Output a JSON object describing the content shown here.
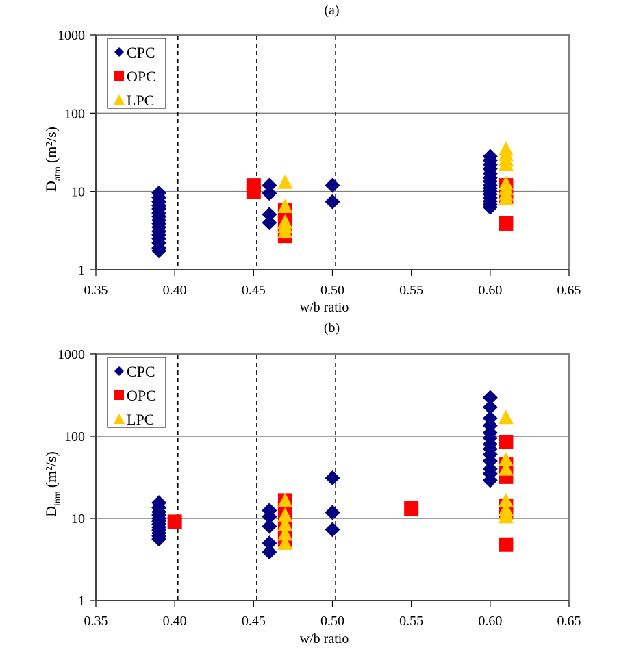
{
  "chart_data": [
    {
      "id": "a",
      "type": "scatter",
      "title": "(a)",
      "xlabel": "w/b ratio",
      "ylabel": "D_atm (m²/s)",
      "ylabel_main": "D",
      "ylabel_sub": "atm",
      "ylabel_unit": "(m²/s)",
      "xlim": [
        0.35,
        0.65
      ],
      "ylim": [
        1,
        1000
      ],
      "yscale": "log",
      "xticks": [
        "0.35",
        "0.40",
        "0.45",
        "0.50",
        "0.55",
        "0.60",
        "0.65"
      ],
      "yticks": [
        "1",
        "10",
        "100",
        "1000"
      ],
      "grid": "horizontal major",
      "vlines_dashed": [
        0.402,
        0.452,
        0.502
      ],
      "legend": {
        "position": "upper-left",
        "entries": [
          "CPC",
          "OPC",
          "LPC"
        ]
      },
      "series": [
        {
          "name": "CPC",
          "marker": "diamond",
          "color": "#000080",
          "points": [
            [
              0.39,
              9.6
            ],
            [
              0.39,
              8.4
            ],
            [
              0.39,
              7.4
            ],
            [
              0.39,
              6.6
            ],
            [
              0.39,
              6.0
            ],
            [
              0.39,
              5.3
            ],
            [
              0.39,
              4.8
            ],
            [
              0.39,
              4.3
            ],
            [
              0.39,
              3.9
            ],
            [
              0.39,
              3.5
            ],
            [
              0.39,
              3.1
            ],
            [
              0.39,
              2.8
            ],
            [
              0.39,
              2.5
            ],
            [
              0.39,
              2.2
            ],
            [
              0.39,
              1.9
            ],
            [
              0.39,
              1.75
            ],
            [
              0.46,
              12.0
            ],
            [
              0.46,
              9.5
            ],
            [
              0.46,
              5.1
            ],
            [
              0.46,
              4.0
            ],
            [
              0.5,
              12.0
            ],
            [
              0.5,
              7.4
            ],
            [
              0.6,
              28
            ],
            [
              0.6,
              25
            ],
            [
              0.6,
              22
            ],
            [
              0.6,
              19.5
            ],
            [
              0.6,
              17
            ],
            [
              0.6,
              15
            ],
            [
              0.6,
              13.5
            ],
            [
              0.6,
              12
            ],
            [
              0.6,
              11
            ],
            [
              0.6,
              10
            ],
            [
              0.6,
              9.2
            ],
            [
              0.6,
              8.3
            ],
            [
              0.6,
              7.5
            ],
            [
              0.6,
              6.8
            ],
            [
              0.6,
              6.3
            ]
          ]
        },
        {
          "name": "OPC",
          "marker": "square",
          "color": "#FF0000",
          "points": [
            [
              0.45,
              12.0
            ],
            [
              0.45,
              10.0
            ],
            [
              0.47,
              5.7
            ],
            [
              0.47,
              4.6
            ],
            [
              0.47,
              3.8
            ],
            [
              0.47,
              3.1
            ],
            [
              0.47,
              2.7
            ],
            [
              0.61,
              12.0
            ],
            [
              0.61,
              10.5
            ],
            [
              0.61,
              8.3
            ],
            [
              0.61,
              3.9
            ]
          ]
        },
        {
          "name": "LPC",
          "marker": "triangle",
          "color": "#FFCC00",
          "points": [
            [
              0.47,
              13.2
            ],
            [
              0.47,
              6.5
            ],
            [
              0.47,
              4.1
            ],
            [
              0.47,
              3.6
            ],
            [
              0.47,
              3.1
            ],
            [
              0.61,
              35
            ],
            [
              0.61,
              30
            ],
            [
              0.61,
              26
            ],
            [
              0.61,
              22.5
            ],
            [
              0.61,
              12.7
            ],
            [
              0.61,
              11
            ],
            [
              0.61,
              9.4
            ],
            [
              0.61,
              8.2
            ]
          ]
        }
      ]
    },
    {
      "id": "b",
      "type": "scatter",
      "title": "(b)",
      "xlabel": "w/b ratio",
      "ylabel": "D_inm (m²/s)",
      "ylabel_main": "D",
      "ylabel_sub": "inm",
      "ylabel_unit": "(m²/s)",
      "xlim": [
        0.35,
        0.65
      ],
      "ylim": [
        1,
        1000
      ],
      "yscale": "log",
      "xticks": [
        "0.35",
        "0.40",
        "0.45",
        "0.50",
        "0.55",
        "0.60",
        "0.65"
      ],
      "yticks": [
        "1",
        "10",
        "100",
        "1000"
      ],
      "grid": "horizontal major",
      "vlines_dashed": [
        0.402,
        0.452,
        0.502
      ],
      "legend": {
        "position": "upper-left",
        "entries": [
          "CPC",
          "OPC",
          "LPC"
        ]
      },
      "series": [
        {
          "name": "CPC",
          "marker": "diamond",
          "color": "#000080",
          "points": [
            [
              0.39,
              15.5
            ],
            [
              0.39,
              13.5
            ],
            [
              0.39,
              12
            ],
            [
              0.39,
              11
            ],
            [
              0.39,
              10
            ],
            [
              0.39,
              9.2
            ],
            [
              0.39,
              8.5
            ],
            [
              0.39,
              7.8
            ],
            [
              0.39,
              7.2
            ],
            [
              0.39,
              6.6
            ],
            [
              0.39,
              6.1
            ],
            [
              0.39,
              5.6
            ],
            [
              0.46,
              12.5
            ],
            [
              0.46,
              10.5
            ],
            [
              0.46,
              8.0
            ],
            [
              0.46,
              5.0
            ],
            [
              0.46,
              3.9
            ],
            [
              0.5,
              31
            ],
            [
              0.5,
              11.8
            ],
            [
              0.5,
              7.3
            ],
            [
              0.6,
              295
            ],
            [
              0.6,
              225
            ],
            [
              0.6,
              165
            ],
            [
              0.6,
              135
            ],
            [
              0.6,
              110
            ],
            [
              0.6,
              95
            ],
            [
              0.6,
              80
            ],
            [
              0.6,
              70
            ],
            [
              0.6,
              60
            ],
            [
              0.6,
              50
            ],
            [
              0.6,
              40
            ],
            [
              0.6,
              35
            ],
            [
              0.6,
              29
            ]
          ]
        },
        {
          "name": "OPC",
          "marker": "square",
          "color": "#FF0000",
          "points": [
            [
              0.4,
              9.1
            ],
            [
              0.47,
              16.5
            ],
            [
              0.47,
              12
            ],
            [
              0.47,
              9
            ],
            [
              0.47,
              7
            ],
            [
              0.47,
              5.5
            ],
            [
              0.55,
              13.2
            ],
            [
              0.61,
              85
            ],
            [
              0.61,
              45
            ],
            [
              0.61,
              32
            ],
            [
              0.61,
              14
            ],
            [
              0.61,
              12
            ],
            [
              0.61,
              4.8
            ]
          ]
        },
        {
          "name": "LPC",
          "marker": "triangle",
          "color": "#FFCC00",
          "points": [
            [
              0.47,
              16.5
            ],
            [
              0.47,
              11
            ],
            [
              0.47,
              8.5
            ],
            [
              0.47,
              6.5
            ],
            [
              0.47,
              5
            ],
            [
              0.61,
              170
            ],
            [
              0.61,
              52
            ],
            [
              0.61,
              40
            ],
            [
              0.61,
              16.5
            ],
            [
              0.61,
              13
            ],
            [
              0.61,
              11.5
            ],
            [
              0.61,
              10.5
            ]
          ]
        }
      ]
    }
  ]
}
